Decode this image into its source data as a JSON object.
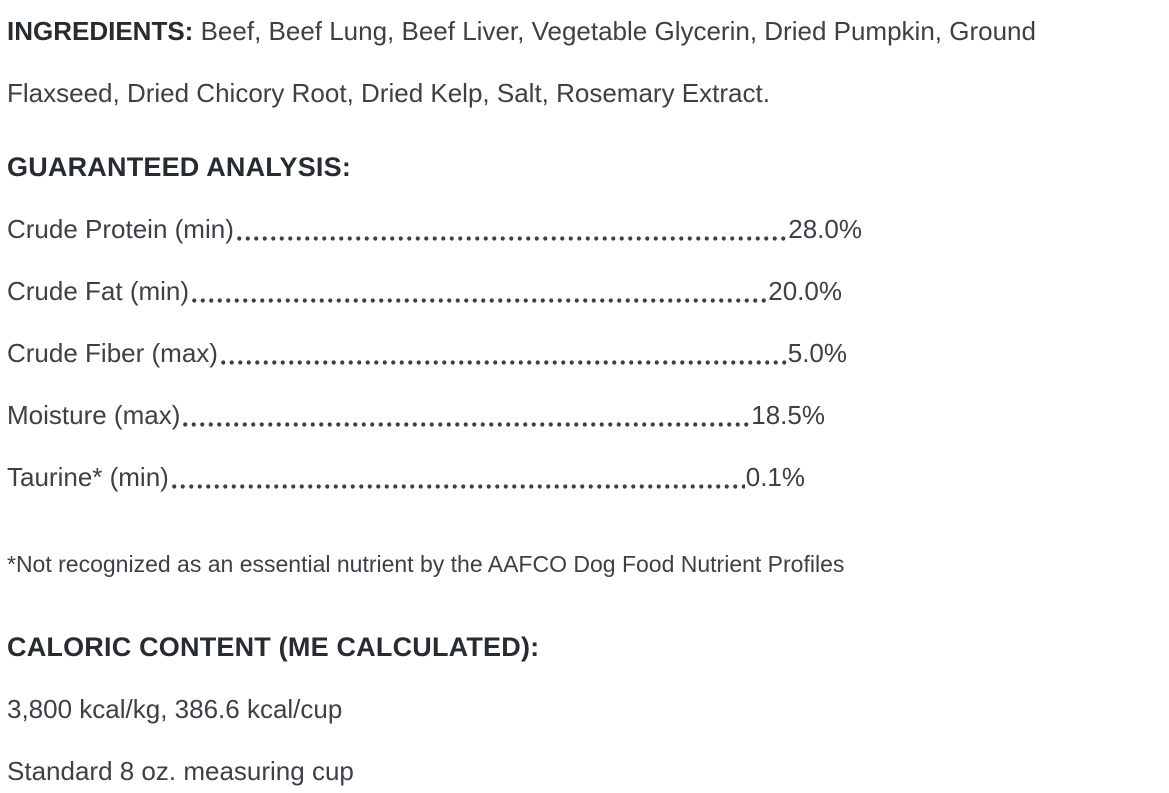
{
  "ingredients": {
    "label": "INGREDIENTS:",
    "line1": "Beef, Beef Lung, Beef Liver, Vegetable Glycerin, Dried Pumpkin, Ground",
    "line2": "Flaxseed, Dried Chicory Root, Dried Kelp, Salt, Rosemary Extract."
  },
  "guaranteed_analysis": {
    "heading": "GUARANTEED ANALYSIS:",
    "rows": [
      {
        "label": "Crude Protein (min)",
        "value": "28.0%"
      },
      {
        "label": "Crude Fat (min)",
        "value": "20.0%"
      },
      {
        "label": "Crude Fiber (max)",
        "value": "5.0%"
      },
      {
        "label": "Moisture (max)",
        "value": "18.5%"
      },
      {
        "label": "Taurine* (min)",
        "value": "0.1%"
      }
    ],
    "footnote": "*Not recognized as an essential nutrient by the AAFCO Dog Food Nutrient Profiles"
  },
  "caloric_content": {
    "heading": "CALORIC CONTENT (ME CALCULATED):",
    "kcal_line": "3,800 kcal/kg, 386.6 kcal/cup",
    "cup_line": "Standard 8 oz. measuring cup"
  },
  "colors": {
    "text": "#3c4146",
    "heading": "#272c30",
    "background": "#ffffff"
  }
}
